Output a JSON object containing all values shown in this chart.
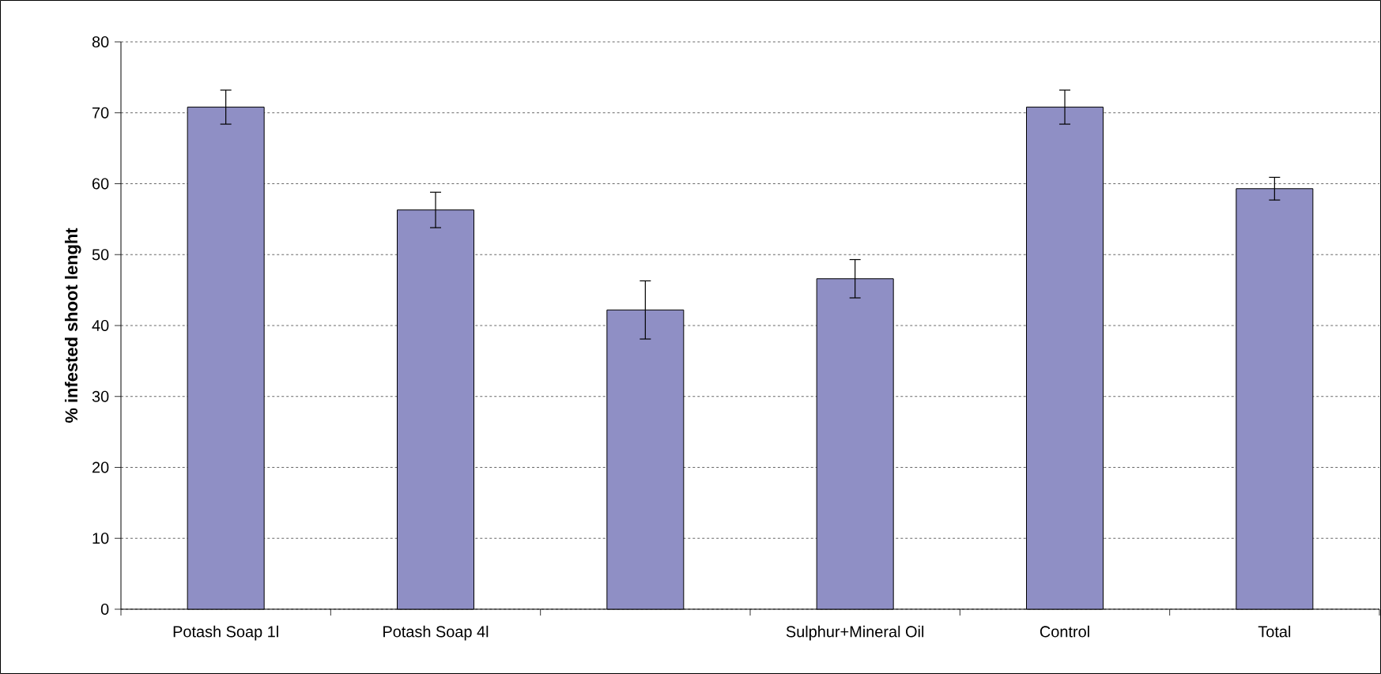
{
  "chart_data": {
    "type": "bar",
    "ylabel": "% infested shoot lenght",
    "categories": [
      "Potash Soap 1l",
      "Potash Soap 4l",
      null,
      "Sulphur+Mineral Oil",
      "Control",
      "Total"
    ],
    "values": [
      70.8,
      56.3,
      42.2,
      46.6,
      70.8,
      59.3
    ],
    "errors": [
      2.4,
      2.5,
      4.1,
      2.7,
      2.4,
      1.6
    ],
    "color": "#8f8fc5",
    "ylim": [
      0,
      80
    ],
    "yticks": [
      0,
      10,
      20,
      30,
      40,
      50,
      60,
      70,
      80
    ],
    "grid": "y"
  }
}
